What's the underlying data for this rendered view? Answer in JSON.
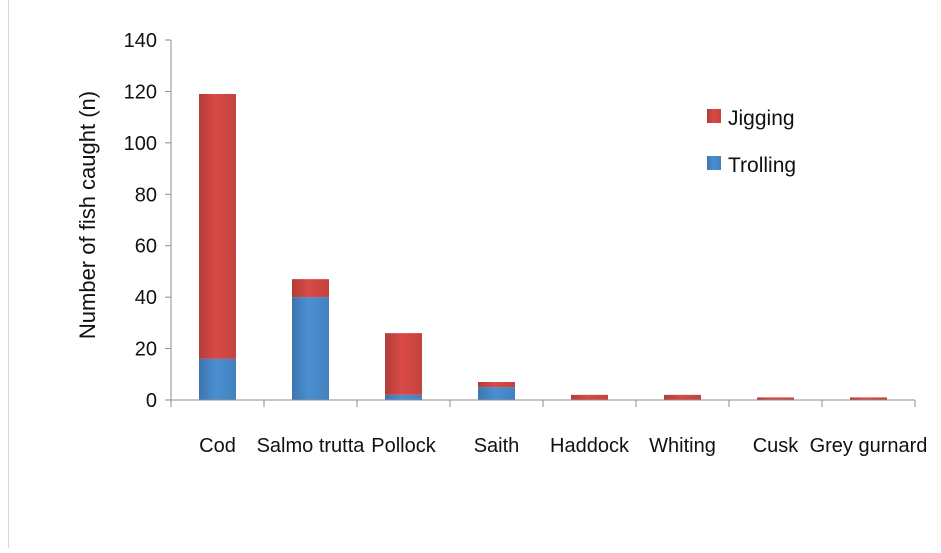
{
  "chart_data": {
    "type": "bar",
    "stacked": true,
    "categories": [
      "Cod",
      "Salmo trutta",
      "Pollock",
      "Saith",
      "Haddock",
      "Whiting",
      "Cusk",
      "Grey gurnard"
    ],
    "series": [
      {
        "name": "Trolling",
        "color": "#4a8fd3",
        "values": [
          16,
          40,
          2,
          5,
          0,
          0,
          0,
          0
        ]
      },
      {
        "name": "Jigging",
        "color": "#d94a45",
        "values": [
          103,
          7,
          24,
          2,
          2,
          2,
          1,
          1
        ]
      }
    ],
    "title": "",
    "xlabel": "",
    "ylabel": "Number of fish caught (n)",
    "ylim": [
      0,
      140
    ],
    "yticks": [
      0,
      20,
      40,
      60,
      80,
      100,
      120,
      140
    ],
    "grid": false,
    "legend_position": "top-right",
    "legend_order": [
      "Jigging",
      "Trolling"
    ]
  }
}
